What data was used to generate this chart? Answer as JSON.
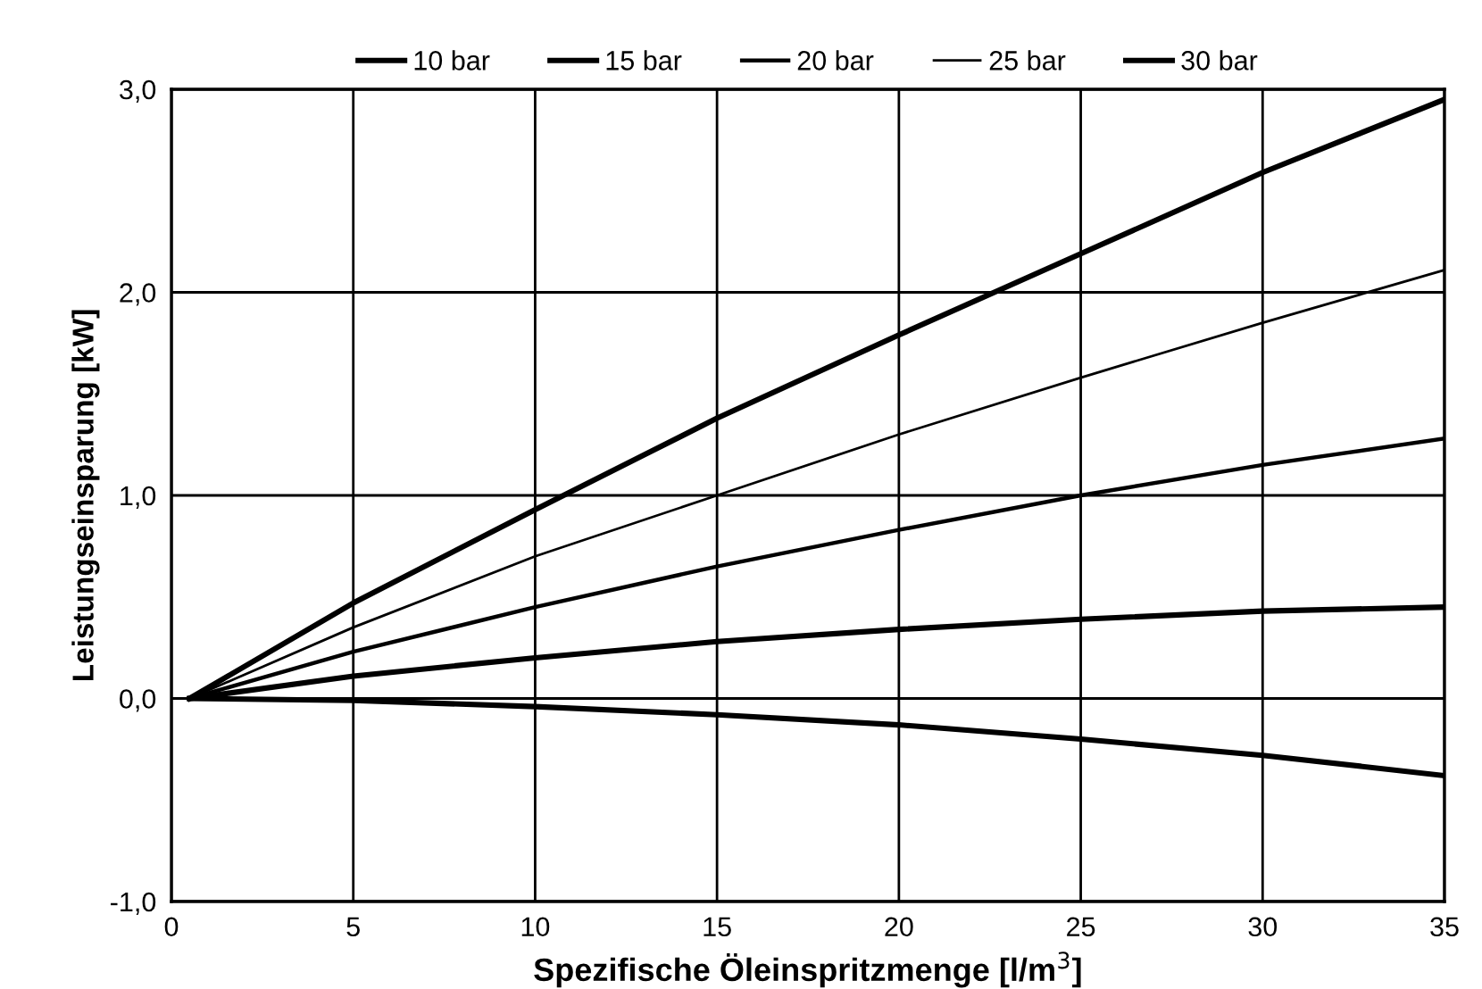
{
  "chart_data": {
    "type": "line",
    "xlabel": "Spezifische Öleinspritzmenge [l/m$^{3}$]",
    "ylabel": "Leistungseinsparung [kW]",
    "x": [
      0.5,
      5,
      10,
      15,
      20,
      25,
      30,
      35
    ],
    "series": [
      {
        "name": "10 bar",
        "color": "#000000",
        "values": [
          0,
          -0.01,
          -0.04,
          -0.08,
          -0.13,
          -0.2,
          -0.28,
          -0.38
        ]
      },
      {
        "name": "15 bar",
        "color": "#000000",
        "values": [
          0,
          0.11,
          0.2,
          0.28,
          0.34,
          0.39,
          0.43,
          0.45
        ]
      },
      {
        "name": "20 bar",
        "color": "#000000",
        "values": [
          0,
          0.23,
          0.45,
          0.65,
          0.83,
          1.0,
          1.15,
          1.28
        ]
      },
      {
        "name": "25 bar",
        "color": "#000000",
        "values": [
          0,
          0.35,
          0.7,
          1.0,
          1.3,
          1.58,
          1.85,
          2.11
        ]
      },
      {
        "name": "30 bar",
        "color": "#000000",
        "values": [
          0,
          0.47,
          0.93,
          1.38,
          1.79,
          2.19,
          2.59,
          2.95
        ]
      }
    ],
    "xlim": [
      0,
      35
    ],
    "xticks": [
      0,
      5,
      10,
      15,
      20,
      25,
      30,
      35
    ],
    "ylim": [
      -1.0,
      3.0
    ],
    "yticks": [
      {
        "value": -1.0,
        "label": "-1,0"
      },
      {
        "value": 0.0,
        "label": "0,0"
      },
      {
        "value": 1.0,
        "label": "1,0"
      },
      {
        "value": 2.0,
        "label": "2,0"
      },
      {
        "value": 3.0,
        "label": "3,0"
      }
    ],
    "grid": true,
    "legend": "top",
    "marker": "none",
    "line_style": "solid"
  }
}
